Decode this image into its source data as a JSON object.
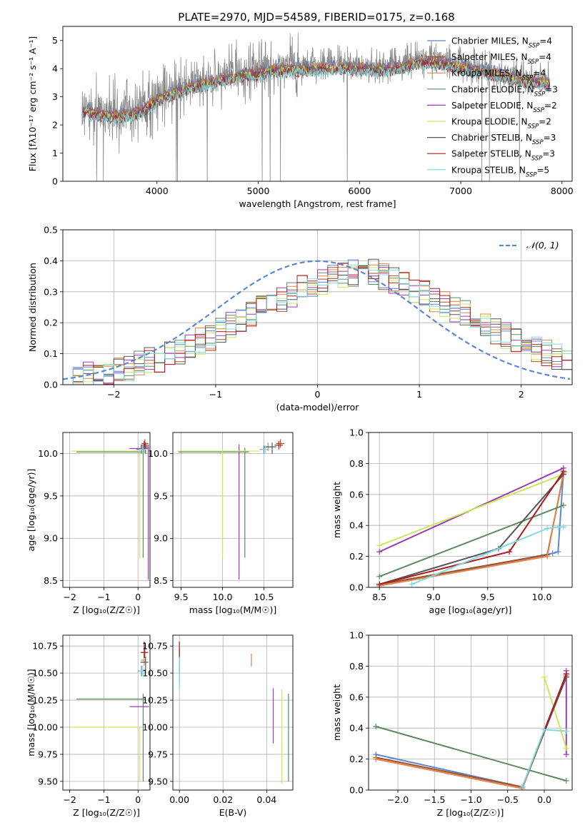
{
  "figure": {
    "title": "PLATE=2970, MJD=54589, FIBERID=0175, z=0.168"
  },
  "colors": {
    "Chabrier MILES": "#5b86d6",
    "Salpeter MILES": "#a0522d",
    "Kroupa MILES": "#e0844a",
    "Chabrier ELODIE": "#5a8a60",
    "Salpeter ELODIE": "#9a3ab5",
    "Kroupa ELODIE": "#c9e85a",
    "Chabrier STELIB": "#555555",
    "Salpeter STELIB": "#b01c1c",
    "Kroupa STELIB": "#7fd9e0",
    "data": "#888888",
    "normal": "#5b86d6"
  },
  "chart_data": [
    {
      "id": "spectrum",
      "type": "line",
      "xlabel": "wavelength [Angstrom, rest frame]",
      "ylabel": "Flux [fλ10⁻¹⁷ erg cm⁻² s⁻¹ A⁻¹]",
      "xlim": [
        3070,
        8100
      ],
      "ylim": [
        0,
        5.5
      ],
      "xticks": [
        4000,
        5000,
        6000,
        7000,
        8000
      ],
      "yticks": [
        0,
        1,
        2,
        3,
        4,
        5
      ],
      "grid": false,
      "legend_position": "top-right",
      "legend": [
        {
          "name": "Chabrier MILES",
          "nssp": "4"
        },
        {
          "name": "Salpeter MILES",
          "nssp": "4"
        },
        {
          "name": "Kroupa MILES",
          "nssp": "4"
        },
        {
          "name": "Chabrier ELODIE",
          "nssp": "3"
        },
        {
          "name": "Salpeter ELODIE",
          "nssp": "2"
        },
        {
          "name": "Kroupa ELODIE",
          "nssp": "2"
        },
        {
          "name": "Chabrier STELIB",
          "nssp": "3"
        },
        {
          "name": "Salpeter STELIB",
          "nssp": "3"
        },
        {
          "name": "Kroupa STELIB",
          "nssp": "5"
        }
      ],
      "wavelength_range": [
        3260,
        7880
      ],
      "continuum": {
        "x": [
          3260,
          3400,
          3600,
          3800,
          3950,
          4100,
          4300,
          4500,
          4800,
          5000,
          5200,
          5500,
          5800,
          6000,
          6200,
          6400,
          6600,
          6800,
          7000,
          7200,
          7400,
          7600,
          7880
        ],
        "y": [
          2.6,
          2.5,
          2.4,
          2.5,
          2.85,
          3.15,
          3.4,
          3.6,
          3.85,
          3.95,
          4.05,
          4.1,
          4.15,
          4.1,
          4.05,
          4.15,
          4.35,
          4.3,
          4.15,
          4.0,
          3.85,
          3.7,
          3.55
        ]
      }
    },
    {
      "id": "residuals",
      "type": "histogram",
      "xlabel": "(data-model)/error",
      "ylabel": "Normed distribution",
      "xlim": [
        -2.5,
        2.5
      ],
      "ylim": [
        0,
        0.5
      ],
      "xticks": [
        -2,
        -1,
        0,
        1,
        2
      ],
      "yticks": [
        0.0,
        0.1,
        0.2,
        0.3,
        0.4,
        0.5
      ],
      "grid": true,
      "legend_position": "top-right",
      "legend": [
        {
          "name": "𝒩(0, 1)"
        }
      ],
      "bin_width": 0.1,
      "histogram_envelope": {
        "x": [
          -2.5,
          -2.0,
          -1.5,
          -1.0,
          -0.5,
          0.0,
          0.5,
          1.0,
          1.5,
          2.0,
          2.5
        ],
        "y": [
          0.02,
          0.04,
          0.09,
          0.16,
          0.26,
          0.33,
          0.37,
          0.3,
          0.22,
          0.13,
          0.07
        ]
      }
    },
    {
      "id": "age-vs-Z",
      "type": "errorbar",
      "xlabel": "Z [log₁₀(Z/Z☉)]",
      "ylabel": "age  [log₁₀(age/yr)]",
      "xlim": [
        -2.2,
        0.35
      ],
      "ylim": [
        8.42,
        10.25
      ],
      "xticks": [
        -2,
        -1,
        0
      ],
      "yticks": [
        8.5,
        9.0,
        9.5,
        10.0
      ],
      "grid": true,
      "points": [
        {
          "series": "Chabrier MILES",
          "x": 0.1,
          "y": 10.05,
          "xerr": [
            0.15,
            0.1
          ],
          "yerr": [
            0.05,
            0.05
          ]
        },
        {
          "series": "Salpeter MILES",
          "x": 0.2,
          "y": 10.12,
          "xerr": [
            0.1,
            0.1
          ],
          "yerr": [
            0.05,
            0.05
          ]
        },
        {
          "series": "Kroupa MILES",
          "x": 0.18,
          "y": 10.08,
          "xerr": [
            0.1,
            0.1
          ],
          "yerr": [
            0.05,
            0.05
          ]
        },
        {
          "series": "Chabrier ELODIE",
          "x": 0.15,
          "y": 10.02,
          "xerr": [
            1.95,
            0.05
          ],
          "yerr": [
            1.25,
            0.05
          ]
        },
        {
          "series": "Salpeter ELODIE",
          "x": 0.3,
          "y": 10.06,
          "xerr": [
            0.55,
            0.02
          ],
          "yerr": [
            1.55,
            0.05
          ]
        },
        {
          "series": "Kroupa ELODIE",
          "x": 0.05,
          "y": 10.03,
          "xerr": [
            2.0,
            0.02
          ],
          "yerr": [
            1.27,
            0.02
          ]
        },
        {
          "series": "Chabrier STELIB",
          "x": 0.22,
          "y": 10.08,
          "xerr": [
            0.15,
            0.08
          ],
          "yerr": [
            0.08,
            0.05
          ]
        },
        {
          "series": "Salpeter STELIB",
          "x": 0.18,
          "y": 10.1,
          "xerr": [
            0.1,
            0.1
          ],
          "yerr": [
            0.05,
            0.05
          ]
        },
        {
          "series": "Kroupa STELIB",
          "x": 0.14,
          "y": 10.05,
          "xerr": [
            0.1,
            0.1
          ],
          "yerr": [
            0.05,
            0.05
          ]
        }
      ]
    },
    {
      "id": "age-vs-mass",
      "type": "errorbar",
      "xlabel": "mass [log₁₀(M/M☉)]",
      "ylabel": "",
      "xlim": [
        9.4,
        10.85
      ],
      "ylim": [
        8.42,
        10.25
      ],
      "xticks": [
        9.5,
        10.0,
        10.5
      ],
      "yticks": [
        8.5,
        9.0,
        9.5,
        10.0
      ],
      "grid": true,
      "points": [
        {
          "series": "Chabrier MILES",
          "x": 10.5,
          "y": 10.05,
          "xerr": [
            0.05,
            0.05
          ],
          "yerr": [
            0.05,
            0.05
          ]
        },
        {
          "series": "Salpeter MILES",
          "x": 10.7,
          "y": 10.12,
          "xerr": [
            0.05,
            0.05
          ],
          "yerr": [
            0.05,
            0.05
          ]
        },
        {
          "series": "Kroupa MILES",
          "x": 10.55,
          "y": 10.08,
          "xerr": [
            0.05,
            0.05
          ],
          "yerr": [
            0.05,
            0.05
          ]
        },
        {
          "series": "Chabrier ELODIE",
          "x": 10.27,
          "y": 10.02,
          "xerr": [
            0.8,
            0.05
          ],
          "yerr": [
            1.25,
            0.05
          ]
        },
        {
          "series": "Salpeter ELODIE",
          "x": 10.2,
          "y": 10.06,
          "xerr": [
            0.0,
            0.0
          ],
          "yerr": [
            1.55,
            0.05
          ]
        },
        {
          "series": "Kroupa ELODIE",
          "x": 10.0,
          "y": 10.03,
          "xerr": [
            0.55,
            0.45
          ],
          "yerr": [
            1.27,
            0.02
          ]
        },
        {
          "series": "Chabrier STELIB",
          "x": 10.6,
          "y": 10.08,
          "xerr": [
            0.1,
            0.05
          ],
          "yerr": [
            0.08,
            0.05
          ]
        },
        {
          "series": "Salpeter STELIB",
          "x": 10.68,
          "y": 10.1,
          "xerr": [
            0.05,
            0.05
          ],
          "yerr": [
            0.05,
            0.05
          ]
        },
        {
          "series": "Kroupa STELIB",
          "x": 10.52,
          "y": 10.05,
          "xerr": [
            0.05,
            0.05
          ],
          "yerr": [
            0.05,
            0.05
          ]
        }
      ]
    },
    {
      "id": "mass-weight-vs-age",
      "type": "line",
      "xlabel": "age  [log₁₀(age/yr)]",
      "ylabel": "mass weight",
      "xlim": [
        8.4,
        10.28
      ],
      "ylim": [
        0.0,
        1.0
      ],
      "xticks": [
        8.5,
        9.0,
        9.5,
        10.0
      ],
      "yticks": [
        0.0,
        0.2,
        0.4,
        0.6,
        0.8,
        1.0
      ],
      "grid": true,
      "series": [
        {
          "series": "Chabrier MILES",
          "x": [
            8.5,
            10.1,
            10.15,
            10.2
          ],
          "y": [
            0.01,
            0.22,
            0.23,
            0.75
          ]
        },
        {
          "series": "Salpeter MILES",
          "x": [
            8.5,
            10.05,
            10.2
          ],
          "y": [
            0.02,
            0.21,
            0.73
          ]
        },
        {
          "series": "Kroupa MILES",
          "x": [
            8.5,
            10.05,
            10.2
          ],
          "y": [
            0.01,
            0.2,
            0.74
          ]
        },
        {
          "series": "Chabrier ELODIE",
          "x": [
            8.5,
            10.2
          ],
          "y": [
            0.07,
            0.53
          ]
        },
        {
          "series": "Salpeter ELODIE",
          "x": [
            8.5,
            10.2
          ],
          "y": [
            0.23,
            0.77
          ]
        },
        {
          "series": "Kroupa ELODIE",
          "x": [
            8.5,
            10.2
          ],
          "y": [
            0.27,
            0.73
          ]
        },
        {
          "series": "Chabrier STELIB",
          "x": [
            8.5,
            9.6,
            10.2
          ],
          "y": [
            0.02,
            0.25,
            0.73
          ]
        },
        {
          "series": "Salpeter STELIB",
          "x": [
            8.5,
            9.7,
            10.2
          ],
          "y": [
            0.02,
            0.23,
            0.75
          ]
        },
        {
          "series": "Kroupa STELIB",
          "x": [
            8.8,
            10.05,
            10.15,
            10.2
          ],
          "y": [
            0.02,
            0.38,
            0.39,
            0.39
          ]
        }
      ]
    },
    {
      "id": "mass-vs-Z",
      "type": "errorbar",
      "xlabel": "Z [log₁₀(Z/Z☉)]",
      "ylabel": "mass [log₁₀(M/M☉)]",
      "xlim": [
        -2.2,
        0.35
      ],
      "ylim": [
        9.42,
        10.85
      ],
      "xticks": [
        -2,
        -1,
        0
      ],
      "yticks": [
        9.5,
        9.75,
        10.0,
        10.25,
        10.5,
        10.75
      ],
      "grid": true,
      "points": [
        {
          "series": "Chabrier MILES",
          "x": 0.1,
          "y": 10.52,
          "xerr": [
            0.1,
            0.1
          ],
          "yerr": [
            0.05,
            0.05
          ]
        },
        {
          "series": "Salpeter MILES",
          "x": 0.2,
          "y": 10.69,
          "xerr": [
            0.1,
            0.1
          ],
          "yerr": [
            0.05,
            0.05
          ]
        },
        {
          "series": "Kroupa MILES",
          "x": 0.18,
          "y": 10.62,
          "xerr": [
            0.1,
            0.05
          ],
          "yerr": [
            0.05,
            0.05
          ]
        },
        {
          "series": "Chabrier ELODIE",
          "x": 0.15,
          "y": 10.26,
          "xerr": [
            1.95,
            0.05
          ],
          "yerr": [
            0.76,
            0.05
          ]
        },
        {
          "series": "Salpeter ELODIE",
          "x": 0.3,
          "y": 10.19,
          "xerr": [
            0.55,
            0.02
          ],
          "yerr": [
            0.0,
            0.0
          ]
        },
        {
          "series": "Kroupa ELODIE",
          "x": 0.05,
          "y": 10.0,
          "xerr": [
            2.0,
            0.02
          ],
          "yerr": [
            0.5,
            0.0
          ]
        },
        {
          "series": "Chabrier STELIB",
          "x": 0.22,
          "y": 10.6,
          "xerr": [
            0.15,
            0.08
          ],
          "yerr": [
            0.1,
            0.05
          ]
        },
        {
          "series": "Salpeter STELIB",
          "x": 0.18,
          "y": 10.69,
          "xerr": [
            0.1,
            0.1
          ],
          "yerr": [
            0.05,
            0.1
          ]
        },
        {
          "series": "Kroupa STELIB",
          "x": 0.14,
          "y": 10.52,
          "xerr": [
            0.1,
            0.1
          ],
          "yerr": [
            0.05,
            0.05
          ]
        }
      ]
    },
    {
      "id": "mass-vs-ebv",
      "type": "errorbar",
      "xlabel": "E(B-V)",
      "ylabel": "",
      "xlim": [
        -0.003,
        0.052
      ],
      "ylim": [
        9.42,
        10.85
      ],
      "xticks": [
        0.0,
        0.02,
        0.04
      ],
      "yticks": [
        9.5,
        9.75,
        10.0,
        10.25,
        10.5,
        10.75
      ],
      "grid": true,
      "points": [
        {
          "series": "Chabrier MILES",
          "x": 0.0,
          "y": 10.52,
          "xerr": [
            0,
            0
          ],
          "yerr": [
            0.1,
            0.05
          ]
        },
        {
          "series": "Salpeter MILES",
          "x": 0.0,
          "y": 10.69,
          "xerr": [
            0,
            0
          ],
          "yerr": [
            0.05,
            0.05
          ]
        },
        {
          "series": "Kroupa MILES",
          "x": 0.033,
          "y": 10.62,
          "xerr": [
            0,
            0
          ],
          "yerr": [
            0.06,
            0.06
          ]
        },
        {
          "series": "Chabrier ELODIE",
          "x": 0.05,
          "y": 10.26,
          "xerr": [
            0,
            0
          ],
          "yerr": [
            0.76,
            0.05
          ]
        },
        {
          "series": "Salpeter ELODIE",
          "x": 0.043,
          "y": 10.19,
          "xerr": [
            0,
            0
          ],
          "yerr": [
            0.34,
            0.17
          ]
        },
        {
          "series": "Kroupa ELODIE",
          "x": 0.047,
          "y": 10.0,
          "xerr": [
            0,
            0
          ],
          "yerr": [
            0.52,
            0.35
          ]
        },
        {
          "series": "Chabrier STELIB",
          "x": 0.0,
          "y": 10.6,
          "xerr": [
            0,
            0
          ],
          "yerr": [
            0.1,
            0.05
          ]
        },
        {
          "series": "Salpeter STELIB",
          "x": 0.0,
          "y": 10.69,
          "xerr": [
            0,
            0
          ],
          "yerr": [
            0.05,
            0.1
          ]
        },
        {
          "series": "Kroupa STELIB",
          "x": 0.0,
          "y": 10.5,
          "xerr": [
            0,
            0
          ],
          "yerr": [
            0.15,
            0.15
          ]
        }
      ]
    },
    {
      "id": "mass-weight-vs-Z",
      "type": "line",
      "xlabel": "Z [log₁₀(Z/Z☉)]",
      "ylabel": "mass weight",
      "xlim": [
        -2.4,
        0.38
      ],
      "ylim": [
        0.0,
        1.0
      ],
      "xticks": [
        -2.0,
        -1.5,
        -1.0,
        -0.5,
        0.0
      ],
      "yticks": [
        0.0,
        0.2,
        0.4,
        0.6,
        0.8,
        1.0
      ],
      "grid": true,
      "series": [
        {
          "series": "Chabrier MILES",
          "x": [
            -2.3,
            -0.3,
            0.3
          ],
          "y": [
            0.23,
            0.02,
            0.75
          ]
        },
        {
          "series": "Salpeter MILES",
          "x": [
            -2.3,
            -0.3,
            0.3
          ],
          "y": [
            0.21,
            0.02,
            0.73
          ]
        },
        {
          "series": "Kroupa MILES",
          "x": [
            -2.3,
            -0.3,
            0.3
          ],
          "y": [
            0.2,
            0.01,
            0.74
          ]
        },
        {
          "series": "Chabrier ELODIE",
          "x": [
            -2.3,
            0.3
          ],
          "y": [
            0.41,
            0.06
          ]
        },
        {
          "series": "Salpeter ELODIE",
          "x": [
            0.3,
            0.3
          ],
          "y": [
            0.23,
            0.77
          ]
        },
        {
          "series": "Kroupa ELODIE",
          "x": [
            0.0,
            0.3
          ],
          "y": [
            0.73,
            0.27
          ]
        },
        {
          "series": "Chabrier STELIB",
          "x": [
            -0.3,
            0.3
          ],
          "y": [
            0.02,
            0.73
          ]
        },
        {
          "series": "Salpeter STELIB",
          "x": [
            -0.3,
            0.3
          ],
          "y": [
            0.02,
            0.75
          ]
        },
        {
          "series": "Kroupa STELIB",
          "x": [
            -0.3,
            0.0,
            0.3
          ],
          "y": [
            0.02,
            0.39,
            0.38
          ]
        }
      ]
    }
  ]
}
